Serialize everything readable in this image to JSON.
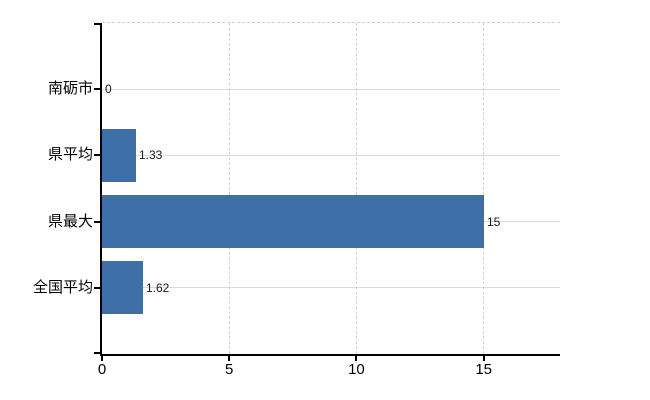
{
  "chart": {
    "background": "#ffffff",
    "bar_color": "#3f6fa9",
    "axis_color": "#000000",
    "h_gridline_color": "#d7ddd7",
    "v_gridline_color": "#d2d2d2",
    "text_color": "#000000",
    "value_text_color": "#1a1a1a"
  },
  "chart_data": {
    "type": "bar",
    "orientation": "horizontal",
    "title": "",
    "xlabel": "",
    "ylabel": "",
    "categories": [
      "南砺市",
      "県平均",
      "県最大",
      "全国平均"
    ],
    "values": [
      0,
      1.33,
      15,
      1.62
    ],
    "value_labels": [
      "0",
      "1.33",
      "15",
      "1.62"
    ],
    "x_ticks": [
      0,
      5,
      10,
      15
    ],
    "x_tick_labels": [
      "0",
      "5",
      "10",
      "15"
    ],
    "xlim": [
      0,
      18
    ],
    "grid": {
      "horizontal": "solid",
      "vertical": "dashed",
      "top_border": "dashed"
    },
    "legend": "none"
  }
}
